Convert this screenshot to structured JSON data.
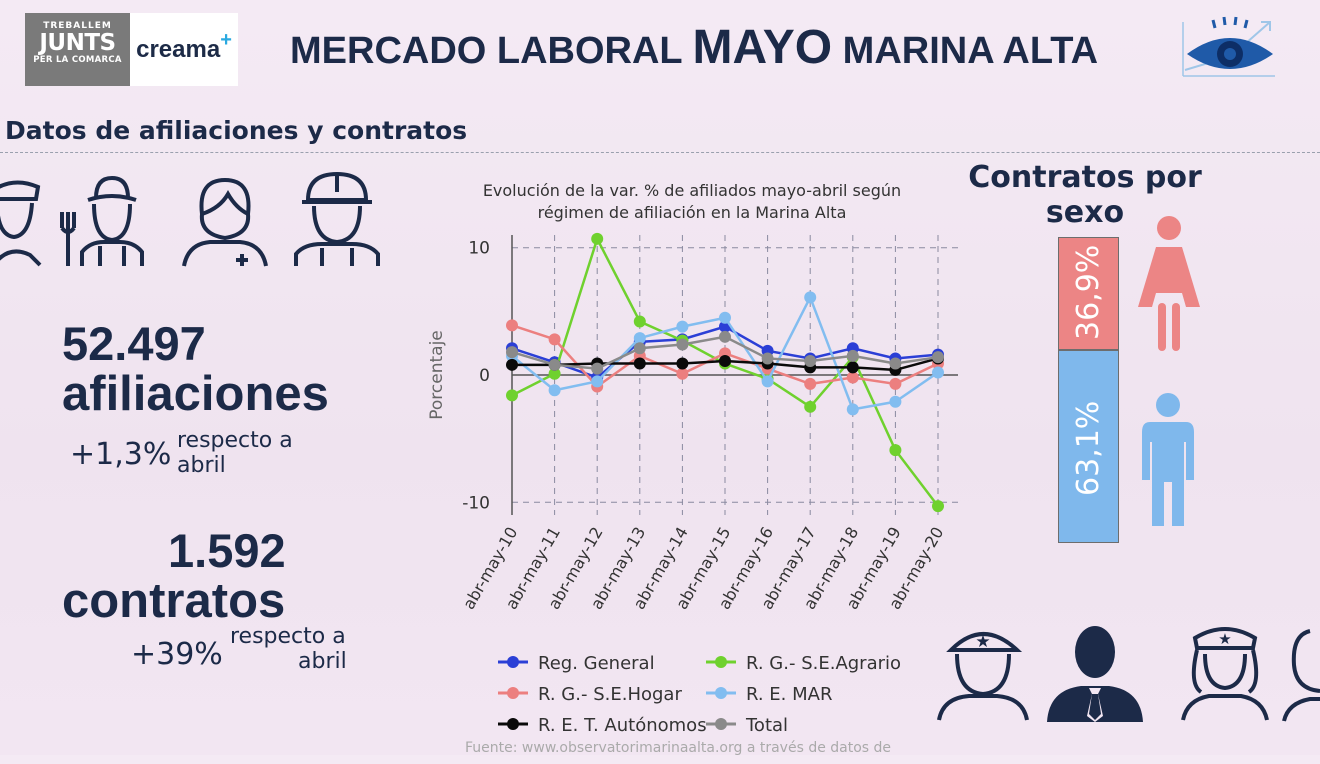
{
  "logos": {
    "treballem_line1": "TREBALLEM",
    "treballem_line2": "JUNTS",
    "treballem_line3": "PER LA COMARCA",
    "creama_text": "creama",
    "creama_plus": "+"
  },
  "header": {
    "title_part1": "MERCADO LABORAL",
    "title_part2": "MAYO",
    "title_part3": "MARINA ALTA"
  },
  "section_title": "Datos de afiliaciones y contratos",
  "stats": {
    "afiliaciones_value": "52.497",
    "afiliaciones_label": "afiliaciones",
    "afiliaciones_change": "+1,3%",
    "afiliaciones_ref1": "respecto a",
    "afiliaciones_ref2": "abril",
    "contratos_value": "1.592",
    "contratos_label": "contratos",
    "contratos_change": "+39%",
    "contratos_ref1": "respecto a",
    "contratos_ref2": "abril"
  },
  "sex_chart": {
    "title_line1": "Contratos por",
    "title_line2": "sexo",
    "female_label": "36,9%",
    "male_label": "63,1%",
    "female_value": 36.9,
    "male_value": 63.1,
    "female_color": "#ec8585",
    "male_color": "#7fb8ec"
  },
  "chart_data": {
    "type": "line",
    "title_line1": "Evolución de la var. % de afiliados mayo-abril según",
    "title_line2": "régimen de afiliación en la Marina Alta",
    "xlabel": "",
    "ylabel": "Porcentaje",
    "ylim": [
      -11,
      11
    ],
    "yticks": [
      "10",
      "0",
      "-10"
    ],
    "grid": true,
    "legend_position": "bottom",
    "categories": [
      "abr-may-10",
      "abr-may-11",
      "abr-may-12",
      "abr-may-13",
      "abr-may-14",
      "abr-may-15",
      "abr-may-16",
      "abr-may-17",
      "abr-may-18",
      "abr-may-19",
      "abr-may-20"
    ],
    "series": [
      {
        "name": "Reg. General",
        "color": "#2b3fd6",
        "values": [
          2.1,
          1.0,
          -0.2,
          2.6,
          2.8,
          3.8,
          1.9,
          1.3,
          2.1,
          1.3,
          1.6
        ]
      },
      {
        "name": "R. G.- S.E.Agrario",
        "color": "#6fd12e",
        "values": [
          -1.6,
          0.1,
          10.7,
          4.2,
          2.7,
          0.9,
          -0.3,
          -2.5,
          1.4,
          -5.9,
          -10.3
        ]
      },
      {
        "name": "R. G.- S.E.Hogar",
        "color": "#ec7f7f",
        "values": [
          3.9,
          2.8,
          -0.9,
          1.5,
          0.1,
          1.7,
          0.5,
          -0.7,
          -0.2,
          -0.7,
          0.9
        ]
      },
      {
        "name": "R. E. MAR",
        "color": "#82bdf0",
        "values": [
          1.5,
          -1.2,
          -0.5,
          2.9,
          3.8,
          4.5,
          -0.5,
          6.1,
          -2.7,
          -2.1,
          0.2
        ]
      },
      {
        "name": "R. E. T. Autónomos",
        "color": "#0a0a0a",
        "values": [
          0.8,
          0.8,
          0.9,
          0.9,
          0.9,
          1.1,
          0.9,
          0.6,
          0.6,
          0.4,
          1.3
        ]
      },
      {
        "name": "Total",
        "color": "#8a8a8a",
        "values": [
          1.8,
          0.8,
          0.5,
          2.1,
          2.4,
          3.0,
          1.3,
          1.1,
          1.5,
          0.9,
          1.4
        ]
      }
    ]
  },
  "footer": {
    "source": "Fuente: www.observatorimarinaalta.org a través de datos de"
  },
  "icons": [
    "police-icon",
    "waiter-icon",
    "farmer-icon",
    "nurse-icon",
    "worker-helmet-icon",
    "eye-logo-icon",
    "woman-icon",
    "man-icon",
    "officer-icon",
    "businessman-icon",
    "stewardess-icon"
  ]
}
